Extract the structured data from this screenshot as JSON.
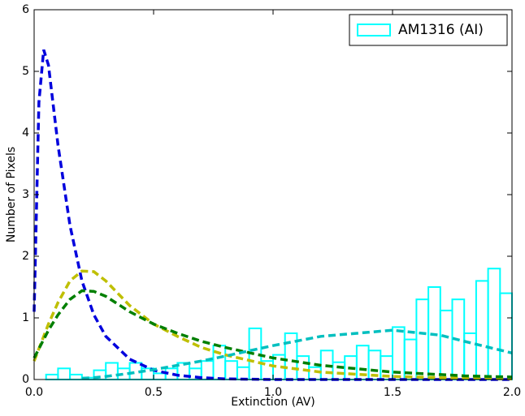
{
  "chart_data": {
    "type": "histogram",
    "xlabel": "Extinction (AV)",
    "ylabel": "Number of Pixels",
    "xlim": [
      0,
      2
    ],
    "ylim": [
      0,
      6
    ],
    "xticks": [
      {
        "value": 0,
        "label": "0.0"
      },
      0.5,
      {
        "value": 1,
        "label": "1.0"
      },
      1.5,
      {
        "value": 2,
        "label": "2.0"
      }
    ],
    "yticks": [
      0,
      1,
      2,
      3,
      4,
      5,
      6
    ],
    "legend": "upper right",
    "bins": [
      0.05,
      0.1,
      0.15,
      0.2,
      0.25,
      0.3,
      0.35,
      0.4,
      0.45,
      0.5,
      0.55,
      0.6,
      0.65,
      0.7,
      0.75,
      0.8,
      0.85,
      0.9,
      0.95,
      1.0,
      1.05,
      1.1,
      1.15,
      1.2,
      1.25,
      1.3,
      1.35,
      1.4,
      1.45,
      1.5,
      1.55,
      1.6,
      1.65,
      1.7,
      1.75,
      1.8,
      1.85,
      1.9,
      1.95,
      2.0
    ],
    "series": [
      {
        "name": "AM1316 (AI)",
        "color": "#00ffff",
        "values": [
          0.08,
          0.18,
          0.08,
          0.03,
          0.15,
          0.27,
          0.18,
          0.27,
          0.18,
          0.1,
          0.18,
          0.27,
          0.18,
          0.3,
          0.55,
          0.3,
          0.2,
          0.83,
          0.3,
          0.4,
          0.75,
          0.38,
          0.2,
          0.47,
          0.28,
          0.38,
          0.55,
          0.47,
          0.38,
          0.85,
          0.65,
          1.3,
          1.5,
          1.12,
          1.3,
          0.75,
          1.6,
          1.8,
          1.4
        ]
      }
    ],
    "curves": {
      "x": [
        0,
        0.02,
        0.04,
        0.06,
        0.1,
        0.15,
        0.2,
        0.25,
        0.3,
        0.4,
        0.5,
        0.6,
        0.7,
        0.8,
        1.0,
        1.2,
        1.5,
        1.7,
        1.8,
        2.0
      ],
      "series": [
        {
          "color": "#0000dd",
          "values": [
            1.1,
            4.5,
            5.35,
            5.1,
            3.8,
            2.5,
            1.6,
            1.05,
            0.7,
            0.33,
            0.15,
            0.07,
            0.03,
            0.01,
            0,
            0,
            0,
            0,
            0,
            0
          ]
        },
        {
          "color": "#bfbf00",
          "values": [
            0.3,
            0.5,
            0.7,
            0.9,
            1.25,
            1.6,
            1.76,
            1.75,
            1.6,
            1.2,
            0.9,
            0.7,
            0.52,
            0.4,
            0.22,
            0.12,
            0.05,
            0.03,
            0.02,
            0.01
          ]
        },
        {
          "color": "#007f00",
          "values": [
            0.35,
            0.5,
            0.65,
            0.8,
            1.05,
            1.3,
            1.44,
            1.43,
            1.35,
            1.1,
            0.9,
            0.75,
            0.62,
            0.52,
            0.35,
            0.23,
            0.12,
            0.08,
            0.06,
            0.04
          ]
        },
        {
          "color": "#00bfbf",
          "values": [
            null,
            null,
            null,
            null,
            null,
            null,
            0.02,
            0.03,
            0.05,
            0.1,
            0.16,
            0.23,
            0.3,
            0.38,
            0.55,
            0.7,
            0.8,
            0.72,
            0.62,
            0.43
          ]
        }
      ]
    }
  }
}
